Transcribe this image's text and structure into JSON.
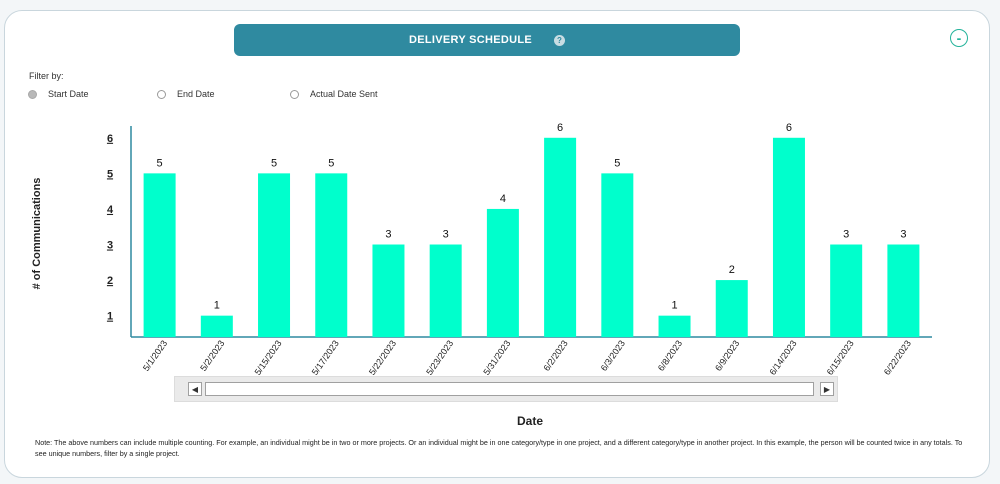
{
  "header": {
    "title": "DELIVERY SCHEDULE",
    "help_icon": "?",
    "collapse_label": "-"
  },
  "filter": {
    "label": "Filter by:",
    "options": [
      {
        "label": "Start Date",
        "selected": true
      },
      {
        "label": "End Date",
        "selected": false
      },
      {
        "label": "Actual Date Sent",
        "selected": false
      }
    ]
  },
  "scrollbar": {
    "left_arrow": "◀",
    "right_arrow": "▶"
  },
  "footnote": "Note: The above numbers can include multiple counting. For example, an individual might be in two or more projects. Or an individual might be in one category/type in one project, and a different category/type in another project. In this example, the person will be counted twice in any totals. To see unique numbers, filter by a single project.",
  "colors": {
    "bar": "#00ffcc",
    "title_bar": "#2f8aa0",
    "axis": "#2f8aa0"
  },
  "chart_data": {
    "type": "bar",
    "title": "",
    "xlabel": "Date",
    "ylabel": "# of Communications",
    "categories": [
      "5/1/2023",
      "5/2/2023",
      "5/15/2023",
      "5/17/2023",
      "5/22/2023",
      "5/23/2023",
      "5/31/2023",
      "6/2/2023",
      "6/3/2023",
      "6/8/2023",
      "6/9/2023",
      "6/14/2023",
      "6/15/2023",
      "6/22/2023"
    ],
    "values": [
      5,
      1,
      5,
      5,
      3,
      3,
      4,
      6,
      5,
      1,
      2,
      6,
      3,
      3
    ],
    "yticks": [
      "1",
      "2",
      "3",
      "4",
      "5",
      "6"
    ],
    "ylim": [
      0.4,
      6.5
    ],
    "grid": false,
    "data_labels": true
  }
}
